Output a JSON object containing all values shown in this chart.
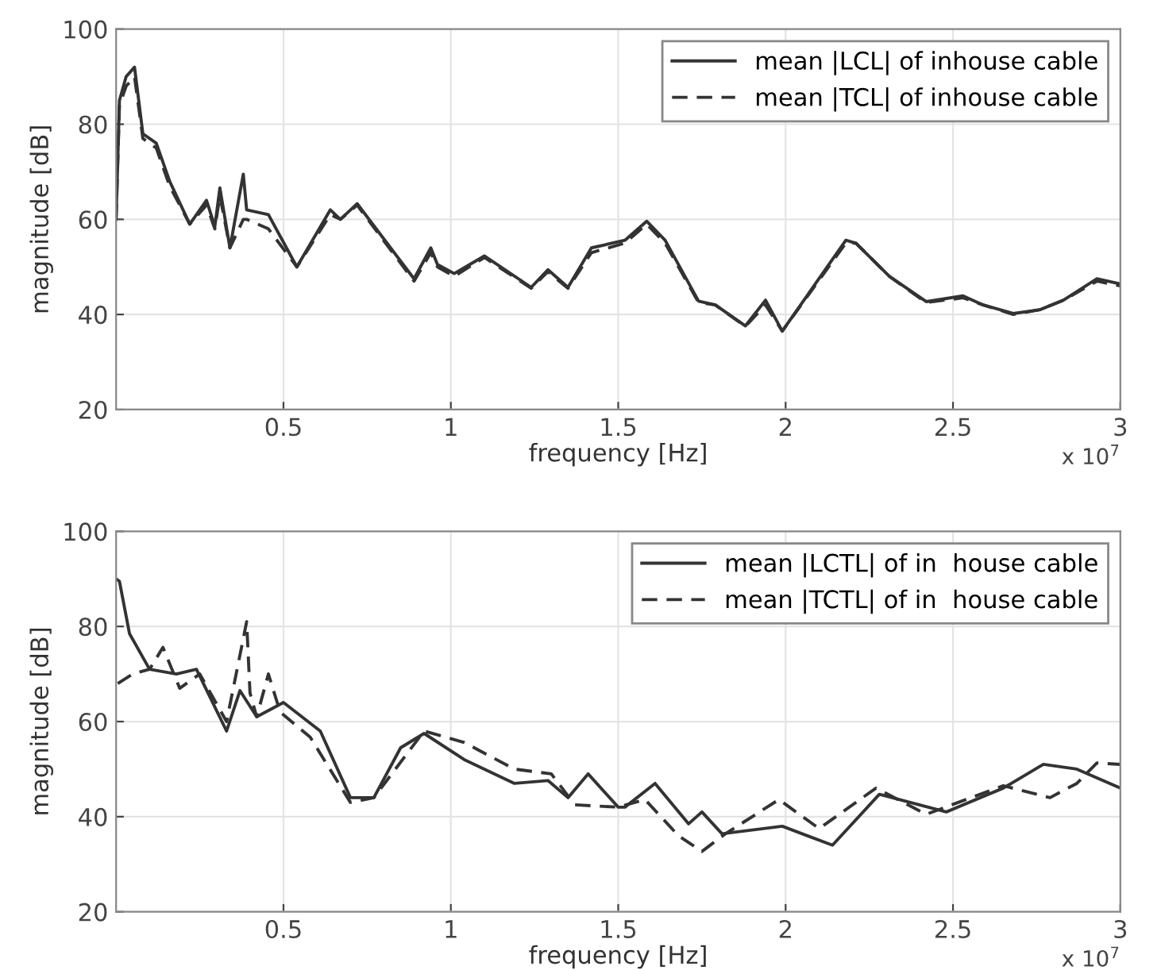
{
  "chart_data": [
    {
      "type": "line",
      "xlabel": "frequency [Hz]",
      "ylabel": "magnitude [dB]",
      "annotations": [
        "x 10$^{7}$"
      ],
      "xlim": [
        0,
        3
      ],
      "xticks": [
        0.5,
        1,
        1.5,
        2,
        2.5,
        3
      ],
      "ylim": [
        20,
        100
      ],
      "yticks": [
        20,
        40,
        60,
        80,
        100
      ],
      "grid": true,
      "legend": "top right",
      "series": [
        {
          "name": "mean |LCL| of inhouse cable",
          "color": "#333333",
          "line_style": "solid",
          "x": [
            0,
            0.01,
            0.03,
            0.055,
            0.08,
            0.12,
            0.16,
            0.22,
            0.27,
            0.295,
            0.31,
            0.34,
            0.38,
            0.39,
            0.455,
            0.54,
            0.64,
            0.67,
            0.72,
            0.89,
            0.94,
            0.96,
            1.01,
            1.1,
            1.24,
            1.29,
            1.35,
            1.42,
            1.52,
            1.585,
            1.64,
            1.74,
            1.79,
            1.88,
            1.94,
            1.99,
            2.18,
            2.21,
            2.31,
            2.42,
            2.53,
            2.59,
            2.68,
            2.76,
            2.83,
            2.93,
            3.0
          ],
          "values": [
            60,
            85,
            90,
            92,
            78,
            76,
            68,
            59,
            64,
            58.5,
            66.6,
            54,
            69.5,
            62,
            61,
            50,
            62,
            60,
            63.3,
            47.5,
            54,
            50.5,
            48.6,
            52.3,
            45.7,
            49.4,
            45.7,
            54,
            55.6,
            59.6,
            55.6,
            42.8,
            42,
            37.6,
            43,
            36.5,
            55.6,
            55,
            48,
            42.7,
            43.9,
            42,
            40.2,
            41,
            43,
            47.5,
            46.4
          ]
        },
        {
          "name": "mean |TCL| of inhouse cable",
          "color": "#333333",
          "line_style": "dashed",
          "x": [
            0,
            0.01,
            0.03,
            0.055,
            0.08,
            0.12,
            0.16,
            0.22,
            0.27,
            0.295,
            0.31,
            0.34,
            0.38,
            0.39,
            0.455,
            0.54,
            0.64,
            0.67,
            0.72,
            0.89,
            0.94,
            0.96,
            1.01,
            1.1,
            1.24,
            1.29,
            1.35,
            1.42,
            1.52,
            1.585,
            1.64,
            1.74,
            1.79,
            1.88,
            1.94,
            1.99,
            2.18,
            2.21,
            2.31,
            2.42,
            2.53,
            2.59,
            2.68,
            2.76,
            2.83,
            2.93,
            3.0
          ],
          "values": [
            60,
            84,
            88,
            90,
            77,
            75,
            67,
            59,
            63,
            58,
            65,
            54,
            60,
            60,
            58,
            50,
            61,
            60,
            63,
            47,
            53,
            50,
            48,
            52,
            45.5,
            49,
            45.5,
            53,
            55,
            59,
            55,
            42.5,
            42,
            37.5,
            42,
            36.5,
            55,
            55,
            48,
            42.5,
            43.5,
            42,
            40,
            41,
            43,
            47,
            46
          ]
        }
      ]
    },
    {
      "type": "line",
      "xlabel": "frequency [Hz]",
      "ylabel": "magnitude [dB]",
      "annotations": [
        "x 10$^{7}$"
      ],
      "xlim": [
        0,
        3
      ],
      "xticks": [
        0.5,
        1,
        1.5,
        2,
        2.5,
        3
      ],
      "ylim": [
        20,
        100
      ],
      "yticks": [
        20,
        40,
        60,
        80,
        100
      ],
      "grid": true,
      "legend": "top right",
      "series": [
        {
          "name": "mean |LCTL| of in  house cable",
          "color": "#333333",
          "line_style": "solid",
          "x": [
            0,
            0.01,
            0.04,
            0.1,
            0.18,
            0.24,
            0.33,
            0.37,
            0.42,
            0.5,
            0.61,
            0.7,
            0.77,
            0.85,
            0.92,
            1.04,
            1.19,
            1.29,
            1.35,
            1.41,
            1.5,
            1.52,
            1.61,
            1.71,
            1.75,
            1.81,
            1.99,
            2.14,
            2.28,
            2.48,
            2.65,
            2.77,
            2.87,
            3.0
          ],
          "values": [
            90,
            89.5,
            78.5,
            71,
            70,
            71,
            58,
            66.5,
            61,
            64,
            58,
            44,
            44,
            54.5,
            57.5,
            52,
            47,
            47.6,
            44,
            49,
            42,
            42,
            47,
            38.5,
            41,
            36.4,
            38,
            34,
            44.7,
            41,
            46,
            51,
            50,
            46
          ]
        },
        {
          "name": "mean |TCTL| of in  house cable",
          "color": "#333333",
          "line_style": "dashed",
          "x": [
            0.005,
            0.05,
            0.1,
            0.14,
            0.19,
            0.25,
            0.33,
            0.39,
            0.4,
            0.42,
            0.455,
            0.49,
            0.58,
            0.7,
            0.77,
            0.92,
            1.04,
            1.19,
            1.3,
            1.37,
            1.5,
            1.58,
            1.68,
            1.75,
            1.82,
            1.98,
            2.1,
            2.27,
            2.42,
            2.65,
            2.79,
            2.87,
            2.93,
            3.0
          ],
          "values": [
            68,
            70,
            71,
            75.6,
            67,
            70,
            60,
            81,
            66,
            61,
            70,
            62,
            56.7,
            43,
            44,
            58,
            55.6,
            50,
            49,
            42.5,
            42,
            43.6,
            36,
            32.7,
            36.4,
            43.6,
            37.5,
            46,
            40.5,
            46.5,
            44,
            47,
            51.3,
            51
          ]
        }
      ]
    }
  ]
}
